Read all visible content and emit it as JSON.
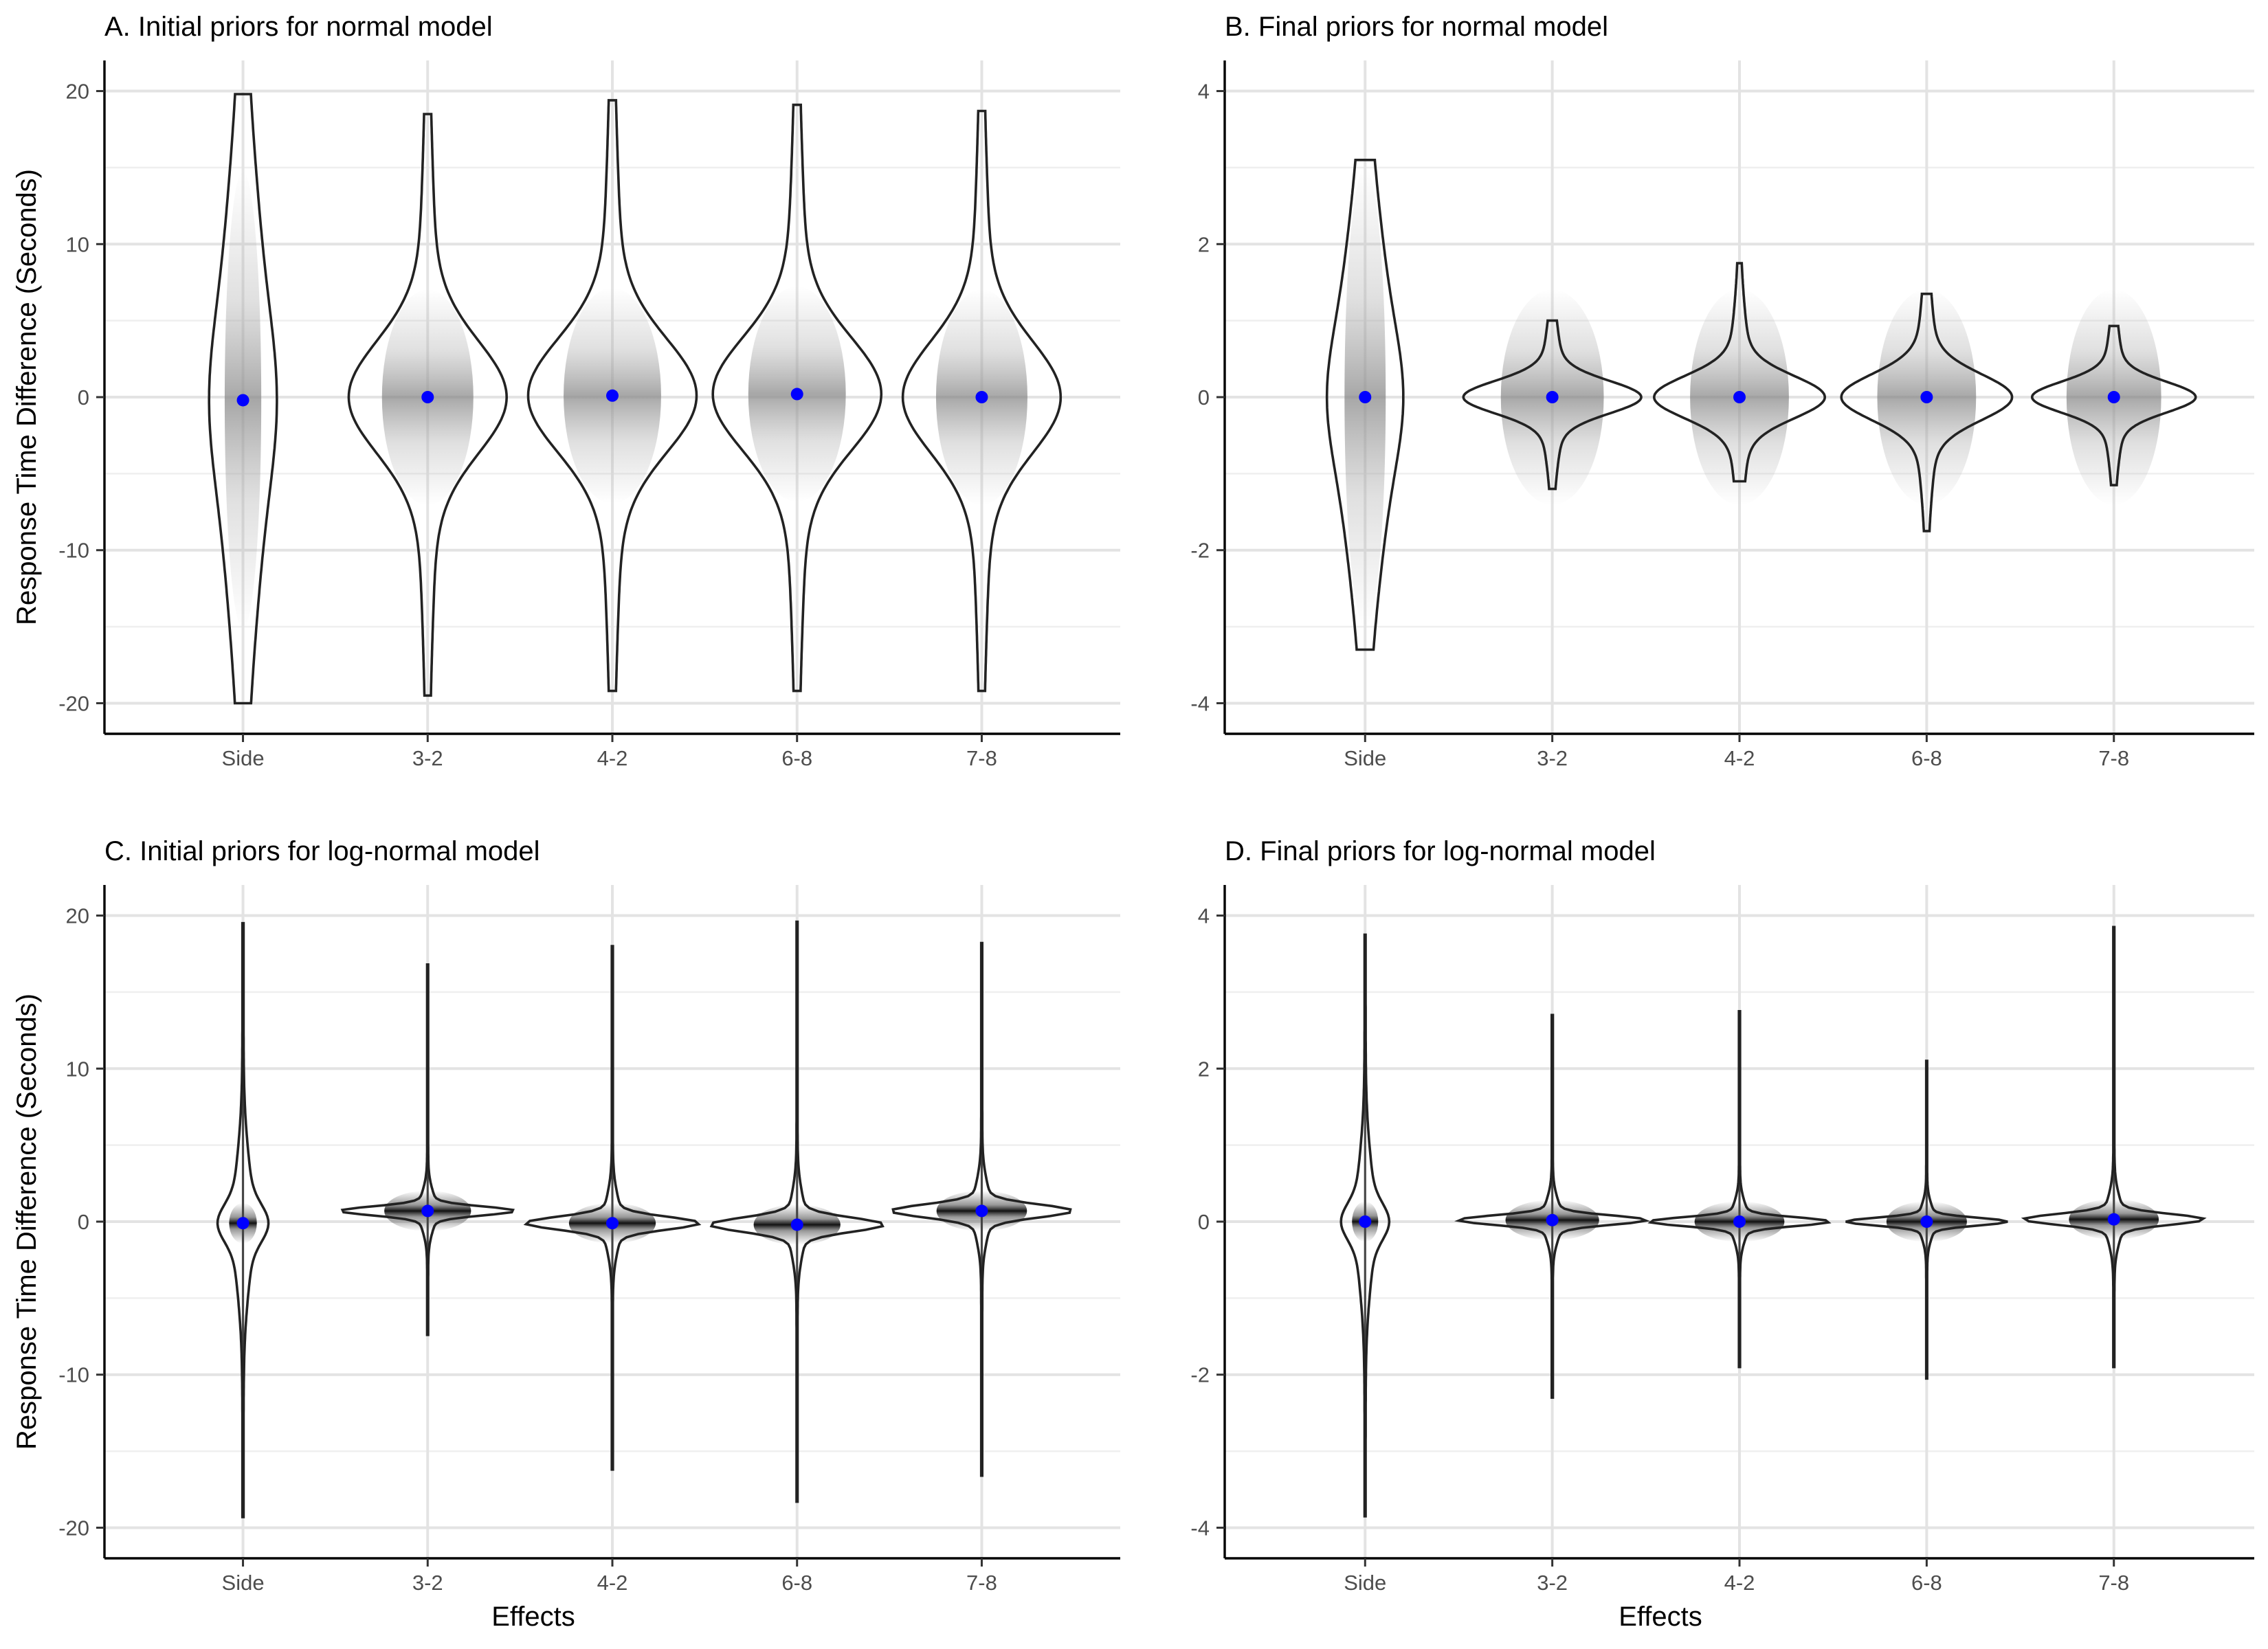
{
  "chart_data": [
    {
      "panel": "A",
      "type": "violin",
      "title": "A. Initial priors for normal model",
      "ylabel": "Response Time Difference (Seconds)",
      "xlabel": "",
      "categories": [
        "Side",
        "3-2",
        "4-2",
        "6-8",
        "7-8"
      ],
      "ylim": [
        -22,
        22
      ],
      "yticks": [
        -20,
        -10,
        0,
        10,
        20
      ],
      "grid": true,
      "means": [
        -0.2,
        0.0,
        0.1,
        0.2,
        0.0
      ],
      "ranges": [
        [
          -20,
          19.8
        ],
        [
          -19.5,
          18.5
        ],
        [
          -19.2,
          19.4
        ],
        [
          -19.2,
          19.1
        ],
        [
          -19.2,
          18.7
        ]
      ],
      "shape": "wide",
      "widths": [
        0.18,
        0.45,
        0.48,
        0.48,
        0.45
      ],
      "point_color": "#0000ff"
    },
    {
      "panel": "B",
      "type": "violin",
      "title": "B. Final priors for normal model",
      "ylabel": "",
      "xlabel": "",
      "categories": [
        "Side",
        "3-2",
        "4-2",
        "6-8",
        "7-8"
      ],
      "ylim": [
        -4.4,
        4.4
      ],
      "yticks": [
        -4,
        -2,
        0,
        2,
        4
      ],
      "grid": true,
      "means": [
        0.0,
        0.0,
        0.0,
        0.0,
        0.0
      ],
      "ranges": [
        [
          -3.3,
          3.1
        ],
        [
          -1.2,
          1.0
        ],
        [
          -1.1,
          1.75
        ],
        [
          -1.75,
          1.35
        ],
        [
          -1.15,
          0.93
        ]
      ],
      "shape": "wide",
      "widths": [
        0.2,
        0.5,
        0.48,
        0.48,
        0.46
      ],
      "point_color": "#0000ff"
    },
    {
      "panel": "C",
      "type": "violin",
      "title": "C. Initial priors for log-normal model",
      "ylabel": "Response Time Difference (Seconds)",
      "xlabel": "Effects",
      "categories": [
        "Side",
        "3-2",
        "4-2",
        "6-8",
        "7-8"
      ],
      "ylim": [
        -22,
        22
      ],
      "yticks": [
        -20,
        -10,
        0,
        10,
        20
      ],
      "grid": true,
      "means": [
        -0.1,
        0.7,
        -0.1,
        -0.2,
        0.7
      ],
      "ranges": [
        [
          -19.3,
          19.5
        ],
        [
          -7.4,
          16.8
        ],
        [
          -16.2,
          18.0
        ],
        [
          -18.3,
          19.6
        ],
        [
          -16.6,
          18.2
        ]
      ],
      "shape": "spike",
      "widths": [
        0.15,
        0.47,
        0.47,
        0.47,
        0.49
      ],
      "point_color": "#0000ff"
    },
    {
      "panel": "D",
      "type": "violin",
      "title": "D. Final priors for log-normal model",
      "ylabel": "",
      "xlabel": "Effects",
      "categories": [
        "Side",
        "3-2",
        "4-2",
        "6-8",
        "7-8"
      ],
      "ylim": [
        -4.4,
        4.4
      ],
      "yticks": [
        -4,
        -2,
        0,
        2,
        4
      ],
      "grid": true,
      "means": [
        0.0,
        0.02,
        0.0,
        0.0,
        0.03
      ],
      "ranges": [
        [
          -3.85,
          3.75
        ],
        [
          -2.3,
          2.7
        ],
        [
          -1.9,
          2.75
        ],
        [
          -2.05,
          2.1
        ],
        [
          -1.9,
          3.85
        ]
      ],
      "shape": "spike",
      "widths": [
        0.14,
        0.5,
        0.48,
        0.43,
        0.48
      ],
      "point_color": "#0000ff"
    }
  ]
}
